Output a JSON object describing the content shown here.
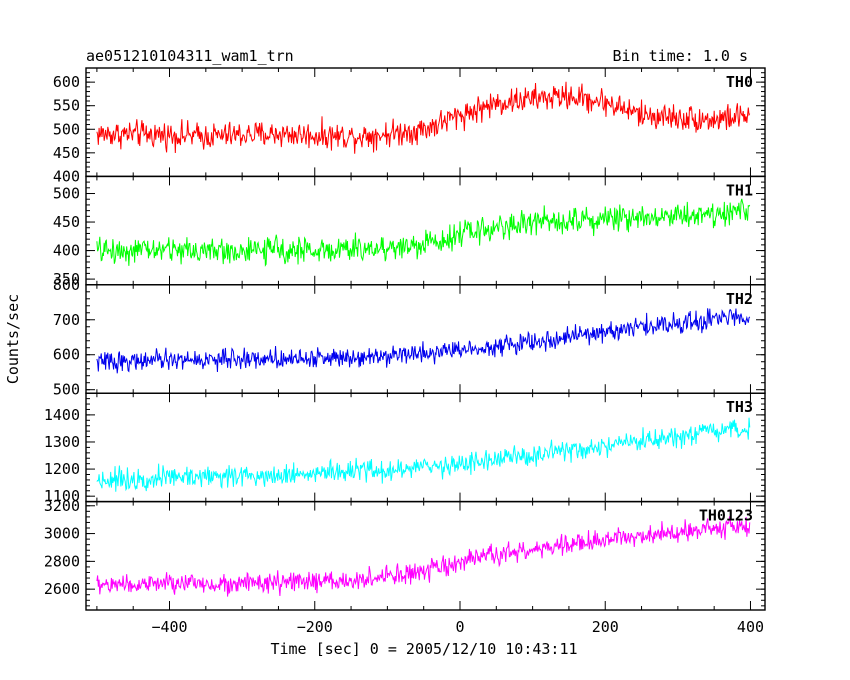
{
  "chart_data": {
    "type": "line",
    "title": "ae051210104311_wam1_trn",
    "bin_time": "Bin time: 1.0 s",
    "xlabel": "Time [sec] 0 = 2005/12/10 10:43:11",
    "ylabel": "Counts/sec",
    "xlim": [
      -515,
      420
    ],
    "x_ticks": [
      -400,
      -200,
      0,
      200,
      400
    ],
    "x_tick_labels": [
      "−400",
      "−200",
      "0",
      "200",
      "400"
    ],
    "grid": false,
    "panels": [
      {
        "name": "TH0",
        "color": "#ff0000",
        "ylim": [
          400,
          630
        ],
        "y_ticks": [
          400,
          450,
          500,
          550,
          600
        ],
        "x": [
          -500,
          -450,
          -400,
          -350,
          -300,
          -250,
          -200,
          -150,
          -100,
          -50,
          0,
          50,
          100,
          150,
          200,
          250,
          300,
          350,
          400
        ],
        "y": [
          490,
          490,
          488,
          485,
          488,
          490,
          487,
          485,
          490,
          500,
          530,
          555,
          565,
          570,
          558,
          530,
          525,
          520,
          530
        ],
        "noise": 35
      },
      {
        "name": "TH1",
        "color": "#00ff00",
        "ylim": [
          340,
          530
        ],
        "y_ticks": [
          350,
          400,
          450,
          500
        ],
        "x": [
          -500,
          -450,
          -400,
          -350,
          -300,
          -250,
          -200,
          -150,
          -100,
          -50,
          0,
          50,
          100,
          150,
          200,
          250,
          300,
          350,
          400
        ],
        "y": [
          400,
          400,
          402,
          400,
          398,
          402,
          400,
          402,
          405,
          410,
          430,
          440,
          450,
          455,
          455,
          460,
          462,
          465,
          470
        ],
        "noise": 28
      },
      {
        "name": "TH2",
        "color": "#0000ee",
        "ylim": [
          490,
          800
        ],
        "y_ticks": [
          500,
          600,
          700,
          800
        ],
        "x": [
          -500,
          -450,
          -400,
          -350,
          -300,
          -250,
          -200,
          -150,
          -100,
          -50,
          0,
          50,
          100,
          150,
          200,
          250,
          300,
          350,
          400
        ],
        "y": [
          580,
          582,
          585,
          585,
          588,
          590,
          590,
          595,
          600,
          605,
          615,
          625,
          635,
          650,
          665,
          680,
          690,
          700,
          715
        ],
        "noise": 35
      },
      {
        "name": "TH3",
        "color": "#00ffff",
        "ylim": [
          1080,
          1480
        ],
        "y_ticks": [
          1100,
          1200,
          1300,
          1400
        ],
        "x": [
          -500,
          -450,
          -400,
          -350,
          -300,
          -250,
          -200,
          -150,
          -100,
          -50,
          0,
          50,
          100,
          150,
          200,
          250,
          300,
          350,
          400
        ],
        "y": [
          1160,
          1165,
          1170,
          1175,
          1175,
          1180,
          1185,
          1190,
          1195,
          1205,
          1220,
          1235,
          1250,
          1265,
          1280,
          1300,
          1315,
          1335,
          1350
        ],
        "noise": 50
      },
      {
        "name": "TH0123",
        "color": "#ff00ff",
        "ylim": [
          2450,
          3230
        ],
        "y_ticks": [
          2600,
          2800,
          3000,
          3200
        ],
        "x": [
          -500,
          -450,
          -400,
          -350,
          -300,
          -250,
          -200,
          -150,
          -100,
          -50,
          0,
          50,
          100,
          150,
          200,
          250,
          300,
          350,
          400
        ],
        "y": [
          2630,
          2635,
          2640,
          2640,
          2640,
          2645,
          2650,
          2660,
          2690,
          2720,
          2790,
          2850,
          2880,
          2920,
          2950,
          2990,
          3020,
          3040,
          3050
        ],
        "noise": 90
      }
    ]
  }
}
